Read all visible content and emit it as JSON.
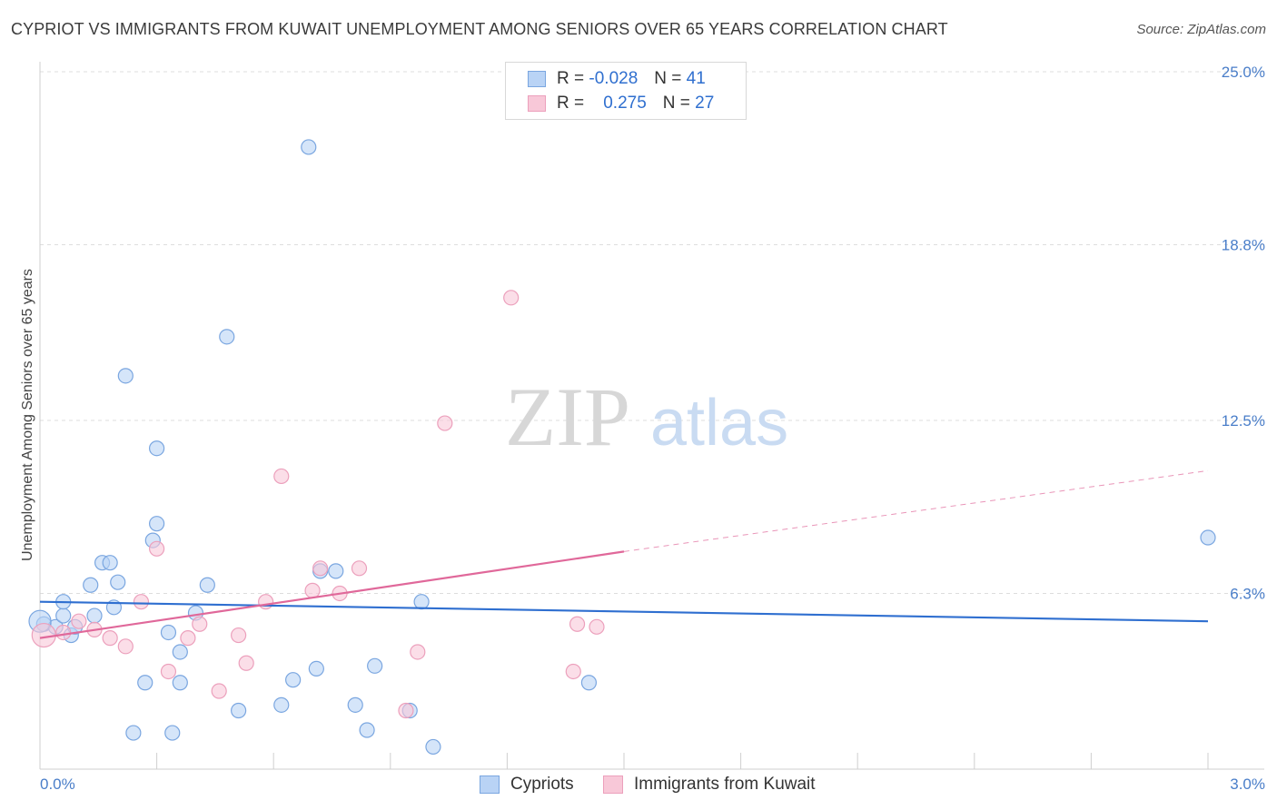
{
  "header": {
    "title": "CYPRIOT VS IMMIGRANTS FROM KUWAIT UNEMPLOYMENT AMONG SENIORS OVER 65 YEARS CORRELATION CHART",
    "source": "Source: ZipAtlas.com"
  },
  "watermark": {
    "zip": "ZIP",
    "atlas": "atlas"
  },
  "legend_top": {
    "rows": [
      {
        "r_label": "R =",
        "r_value": "-0.028",
        "n_label": "N =",
        "n_value": "41"
      },
      {
        "r_label": "R =",
        "r_value": "0.275",
        "n_label": "N =",
        "n_value": "27"
      }
    ]
  },
  "legend_bottom": {
    "series1": "Cypriots",
    "series2": "Immigrants from Kuwait"
  },
  "colors": {
    "blue_fill": "#b9d3f5",
    "blue_stroke": "#7aa6e0",
    "blue_line": "#2f6fd0",
    "pink_fill": "#f8c8d8",
    "pink_stroke": "#eca0bc",
    "pink_line": "#e0689a",
    "tick_text": "#4a7ec9",
    "grid": "#dddddd"
  },
  "chart_data": {
    "type": "scatter",
    "title": "CYPRIOT VS IMMIGRANTS FROM KUWAIT UNEMPLOYMENT AMONG SENIORS OVER 65 YEARS CORRELATION CHART",
    "xlabel": "",
    "ylabel": "Unemployment Among Seniors over 65 years",
    "xlim": [
      0.0,
      3.0
    ],
    "ylim": [
      0.0,
      25.0
    ],
    "x_tick_labels": [
      "0.0%",
      "3.0%"
    ],
    "y_ticks": [
      6.3,
      12.5,
      18.8,
      25.0
    ],
    "y_tick_labels": [
      "6.3%",
      "12.5%",
      "18.8%",
      "25.0%"
    ],
    "series": [
      {
        "name": "Cypriots",
        "R": -0.028,
        "N": 41,
        "trend": {
          "x0": 0.0,
          "y0": 6.0,
          "x1": 3.0,
          "y1": 5.3
        },
        "points": [
          [
            0.01,
            5.2
          ],
          [
            0.04,
            5.1
          ],
          [
            0.06,
            5.5
          ],
          [
            0.08,
            4.8
          ],
          [
            0.09,
            5.1
          ],
          [
            0.14,
            5.5
          ],
          [
            0.06,
            6.0
          ],
          [
            0.13,
            6.6
          ],
          [
            0.16,
            7.4
          ],
          [
            0.18,
            7.4
          ],
          [
            0.19,
            5.8
          ],
          [
            0.2,
            6.7
          ],
          [
            0.22,
            14.1
          ],
          [
            0.24,
            1.3
          ],
          [
            0.27,
            3.1
          ],
          [
            0.29,
            8.2
          ],
          [
            0.3,
            11.5
          ],
          [
            0.3,
            8.8
          ],
          [
            0.33,
            4.9
          ],
          [
            0.34,
            1.3
          ],
          [
            0.36,
            4.2
          ],
          [
            0.36,
            3.1
          ],
          [
            0.4,
            5.6
          ],
          [
            0.43,
            6.6
          ],
          [
            0.48,
            15.5
          ],
          [
            0.51,
            2.1
          ],
          [
            0.62,
            2.3
          ],
          [
            0.65,
            3.2
          ],
          [
            0.69,
            22.3
          ],
          [
            0.71,
            3.6
          ],
          [
            0.72,
            7.1
          ],
          [
            0.76,
            7.1
          ],
          [
            0.81,
            2.3
          ],
          [
            0.84,
            1.4
          ],
          [
            0.86,
            3.7
          ],
          [
            0.95,
            2.1
          ],
          [
            0.98,
            6.0
          ],
          [
            1.01,
            0.8
          ],
          [
            1.41,
            3.1
          ],
          [
            3.0,
            8.3
          ],
          [
            0.0,
            5.3
          ]
        ]
      },
      {
        "name": "Immigrants from Kuwait",
        "R": 0.275,
        "N": 27,
        "trend_solid": {
          "x0": 0.0,
          "y0": 4.7,
          "x1": 1.5,
          "y1": 7.8
        },
        "trend_dashed": {
          "x0": 1.5,
          "y0": 7.8,
          "x1": 3.0,
          "y1": 10.7
        },
        "points": [
          [
            0.01,
            4.8
          ],
          [
            0.06,
            4.9
          ],
          [
            0.1,
            5.3
          ],
          [
            0.14,
            5.0
          ],
          [
            0.18,
            4.7
          ],
          [
            0.22,
            4.4
          ],
          [
            0.26,
            6.0
          ],
          [
            0.3,
            7.9
          ],
          [
            0.33,
            3.5
          ],
          [
            0.38,
            4.7
          ],
          [
            0.41,
            5.2
          ],
          [
            0.46,
            2.8
          ],
          [
            0.51,
            4.8
          ],
          [
            0.53,
            3.8
          ],
          [
            0.58,
            6.0
          ],
          [
            0.62,
            10.5
          ],
          [
            0.7,
            6.4
          ],
          [
            0.72,
            7.2
          ],
          [
            0.77,
            6.3
          ],
          [
            0.82,
            7.2
          ],
          [
            0.94,
            2.1
          ],
          [
            0.97,
            4.2
          ],
          [
            1.04,
            12.4
          ],
          [
            1.21,
            16.9
          ],
          [
            1.37,
            3.5
          ],
          [
            1.38,
            5.2
          ],
          [
            1.43,
            5.1
          ]
        ]
      }
    ]
  }
}
